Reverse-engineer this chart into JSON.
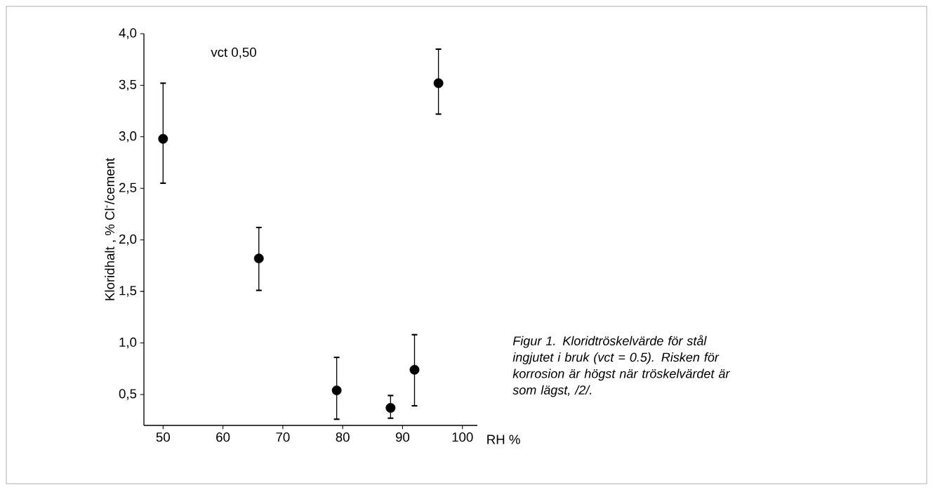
{
  "chart_data": {
    "type": "scatter",
    "xlabel": "RH %",
    "ylabel": "Kloridhalt , % Cl$^{-}$/cement",
    "x": [
      50,
      66,
      79,
      88,
      92,
      96
    ],
    "values": [
      2.98,
      1.82,
      0.54,
      0.37,
      0.74,
      3.52
    ],
    "errors": [
      [
        2.55,
        3.52
      ],
      [
        1.51,
        2.12
      ],
      [
        0.26,
        0.86
      ],
      [
        0.27,
        0.49
      ],
      [
        0.39,
        1.08
      ],
      [
        3.22,
        3.85
      ]
    ],
    "color": "#000000",
    "marker": "circle",
    "xlim": [
      46.8,
      102.5
    ],
    "ylim": [
      0.2,
      4.0
    ],
    "xticks": [
      50,
      60,
      70,
      80,
      90,
      100
    ],
    "yticks": [
      {
        "value": 0.5,
        "label": "0,5"
      },
      {
        "value": 1.0,
        "label": "1,0"
      },
      {
        "value": 1.5,
        "label": "1,5"
      },
      {
        "value": 2.0,
        "label": "2,0"
      },
      {
        "value": 2.5,
        "label": "2,5"
      },
      {
        "value": 3.0,
        "label": "3,0"
      },
      {
        "value": 3.5,
        "label": "3,5"
      },
      {
        "value": 4.0,
        "label": "4,0"
      }
    ],
    "annotations": [
      "vct 0,50",
      "Figur 1. Kloridtröskelvärde för stål ingjutet i bruk (vct = 0.5). Risken för korrosion är högst när tröskelvärdet är som lägst, /2/."
    ]
  }
}
